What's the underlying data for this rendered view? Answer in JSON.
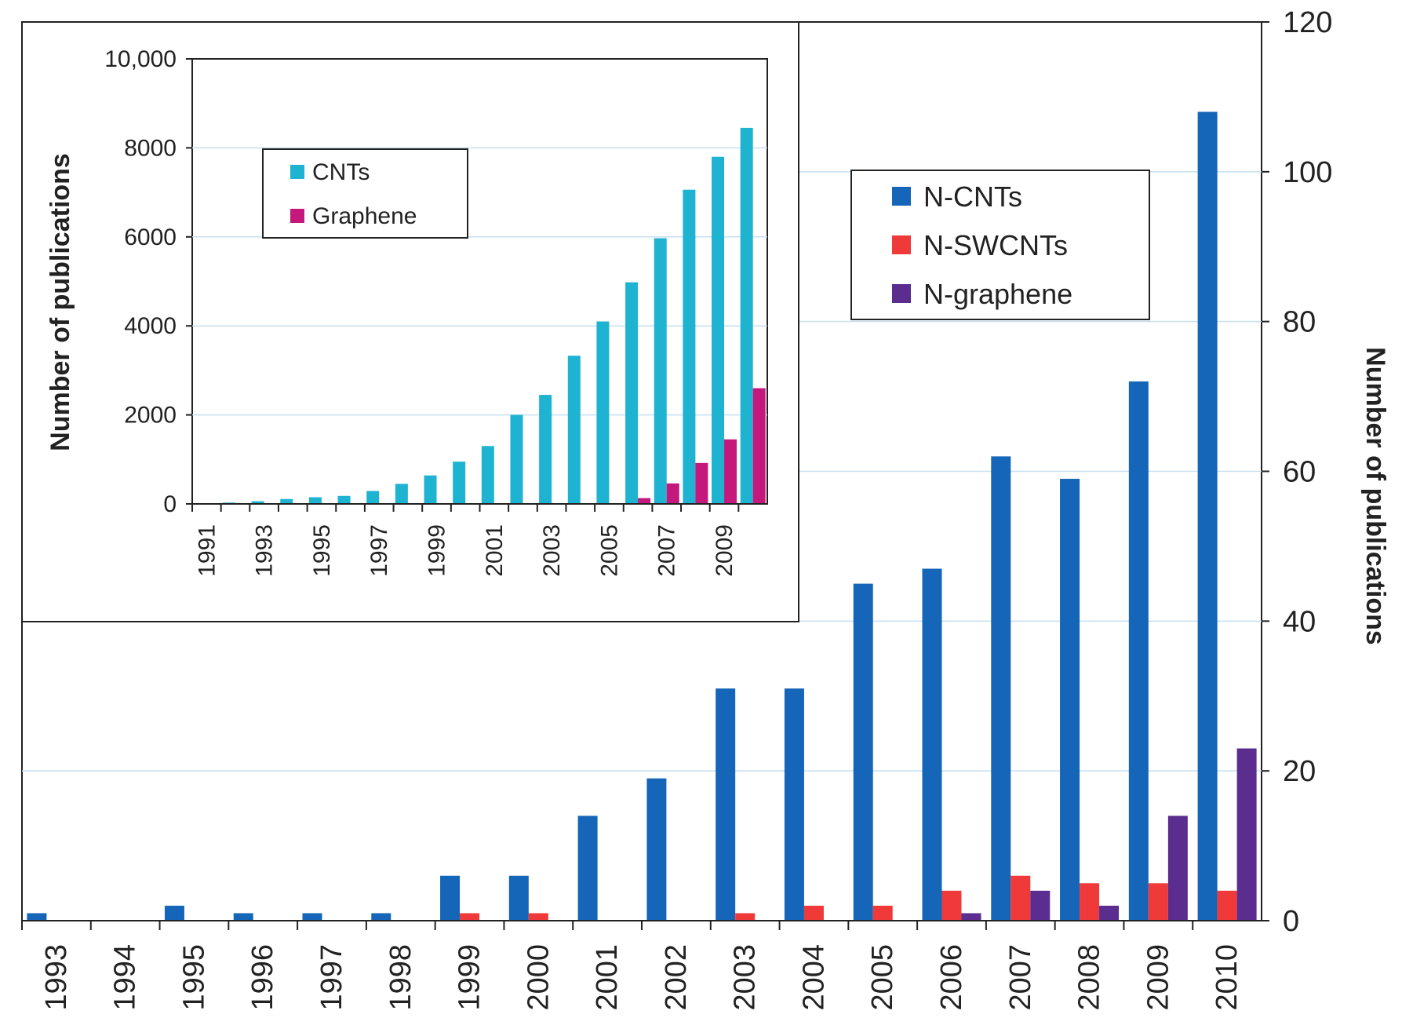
{
  "chart_data": [
    {
      "id": "main",
      "type": "bar",
      "title": "",
      "xlabel": "",
      "ylabel": "Number of publications",
      "ylim": [
        0,
        120
      ],
      "yticks": [
        "0",
        "20",
        "40",
        "60",
        "80",
        "100",
        "120"
      ],
      "categories": [
        "1993",
        "1994",
        "1995",
        "1996",
        "1997",
        "1998",
        "1999",
        "2000",
        "2001",
        "2002",
        "2003",
        "2004",
        "2005",
        "2006",
        "2007",
        "2008",
        "2009",
        "2010"
      ],
      "series": [
        {
          "name": "N-CNTs",
          "color": "#1565b8",
          "values": [
            1,
            0,
            2,
            1,
            1,
            1,
            6,
            6,
            14,
            19,
            31,
            31,
            45,
            47,
            62,
            59,
            72,
            108
          ]
        },
        {
          "name": "N-SWCNTs",
          "color": "#f03a3a",
          "values": [
            0,
            0,
            0,
            0,
            0,
            0,
            1,
            1,
            0,
            0,
            1,
            2,
            2,
            4,
            6,
            5,
            5,
            4
          ]
        },
        {
          "name": "N-graphene",
          "color": "#5b2d8e",
          "values": [
            0,
            0,
            0,
            0,
            0,
            0,
            0,
            0,
            0,
            0,
            0,
            0,
            0,
            1,
            4,
            2,
            14,
            23
          ]
        }
      ],
      "legend": "top-right"
    },
    {
      "id": "inset",
      "type": "bar",
      "title": "",
      "xlabel": "",
      "ylabel": "Number of publications",
      "ylim": [
        0,
        10000
      ],
      "yticks": [
        "0",
        "2000",
        "4000",
        "6000",
        "8000",
        "10,000"
      ],
      "categories": [
        "1991",
        "1992",
        "1993",
        "1994",
        "1995",
        "1996",
        "1997",
        "1998",
        "1999",
        "2000",
        "2001",
        "2002",
        "2003",
        "2004",
        "2005",
        "2006",
        "2007",
        "2008",
        "2009",
        "2010"
      ],
      "xtick_labels": [
        "1991",
        "",
        "1993",
        "",
        "1995",
        "",
        "1997",
        "",
        "1999",
        "",
        "2001",
        "",
        "2003",
        "",
        "2005",
        "",
        "2007",
        "",
        "2009",
        ""
      ],
      "series": [
        {
          "name": "CNTs",
          "color": "#1fb3d2",
          "values": [
            10,
            30,
            60,
            110,
            150,
            180,
            290,
            450,
            640,
            950,
            1300,
            2000,
            2450,
            3330,
            4100,
            4980,
            5970,
            7060,
            7800,
            8450
          ]
        },
        {
          "name": "Graphene",
          "color": "#c4187d",
          "values": [
            0,
            0,
            0,
            0,
            0,
            0,
            0,
            0,
            0,
            0,
            0,
            0,
            0,
            0,
            0,
            130,
            460,
            920,
            1450,
            2600
          ]
        }
      ],
      "legend": "top-left"
    }
  ]
}
